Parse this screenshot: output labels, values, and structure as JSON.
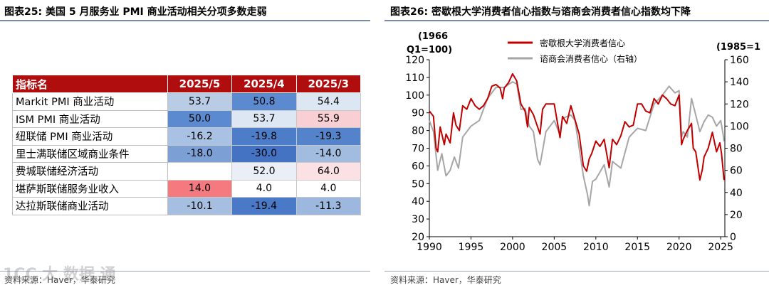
{
  "left_panel": {
    "title": "图表25:   美国 5 月服务业 PMI 商业活动相关分项多数走弱",
    "source": "资料来源：Haver，华泰研究",
    "table": {
      "headers": [
        "指标名",
        "2025/5",
        "2025/4",
        "2025/3"
      ],
      "rows": [
        {
          "name": "Markit PMI 商业活动",
          "values": [
            "53.7",
            "50.8",
            "54.4"
          ],
          "colors": [
            "#b9cce6",
            "#5b8ad0",
            "#dde6f3"
          ]
        },
        {
          "name": "ISM PMI 商业活动",
          "values": [
            "50.0",
            "53.7",
            "55.9"
          ],
          "colors": [
            "#5b8ad0",
            "#dde6f3",
            "#f8cfd2"
          ]
        },
        {
          "name": "纽联储 PMI 商业活动",
          "values": [
            "-16.2",
            "-19.8",
            "-19.3"
          ],
          "colors": [
            "#a9c1e2",
            "#4d7dc8",
            "#5583cb"
          ]
        },
        {
          "name": "里士满联储区域商业条件",
          "values": [
            "-18.0",
            "-30.0",
            "-14.0"
          ],
          "colors": [
            "#7c9fd6",
            "#4473c4",
            "#a2bce0"
          ]
        },
        {
          "name": "费城联储经济活动",
          "values": [
            "",
            "52.0",
            "64.0"
          ],
          "colors": [
            "#ffffff",
            "#e9eef7",
            "#fbe1e3"
          ]
        },
        {
          "name": "堪萨斯联储服务业收入",
          "values": [
            "14.0",
            "4.0",
            "4.0"
          ],
          "colors": [
            "#f47a7f",
            "#ffffff",
            "#ffffff"
          ]
        },
        {
          "name": "达拉斯联储商业活动",
          "values": [
            "-10.1",
            "-19.4",
            "-11.3"
          ],
          "colors": [
            "#a6bfe1",
            "#4a7ac7",
            "#9cb8df"
          ]
        }
      ]
    }
  },
  "right_panel": {
    "title": "图表26:   密歇根大学消费者信心指数与谘商会消费者信心指数均下降",
    "source": "资料来源：Haver，华泰研究",
    "chart_data": {
      "type": "line",
      "left_axis_note_line1": "(1966",
      "left_axis_note_line2": "Q1=100)",
      "right_axis_note": "(1985=1",
      "ylim_left": [
        20,
        120
      ],
      "ylim_right": [
        0,
        160
      ],
      "yticks_left": [
        "20",
        "30",
        "40",
        "50",
        "60",
        "70",
        "80",
        "90",
        "100",
        "110",
        "120"
      ],
      "yticks_right": [
        "0",
        "20",
        "40",
        "60",
        "80",
        "100",
        "120",
        "140",
        "160"
      ],
      "xlim": [
        1990,
        2025.5
      ],
      "xticks": [
        "1990",
        "1995",
        "2000",
        "2005",
        "2010",
        "2015",
        "2020",
        "2025"
      ],
      "series": [
        {
          "name": "密歇根大学消费者信心",
          "color": "#c00000",
          "axis": "left",
          "x": [
            1990.0,
            1990.5,
            1990.8,
            1991.0,
            1991.3,
            1991.8,
            1992.0,
            1992.5,
            1992.9,
            1993.2,
            1993.6,
            1994.0,
            1994.5,
            1995.0,
            1995.5,
            1996.0,
            1996.5,
            1997.0,
            1997.5,
            1998.0,
            1998.5,
            1998.8,
            1999.0,
            1999.5,
            2000.0,
            2000.5,
            2001.0,
            2001.5,
            2001.8,
            2002.0,
            2002.5,
            2003.0,
            2003.3,
            2003.6,
            2004.0,
            2004.5,
            2005.0,
            2005.7,
            2006.0,
            2006.5,
            2007.0,
            2007.5,
            2008.0,
            2008.5,
            2008.9,
            2009.2,
            2009.5,
            2010.0,
            2010.5,
            2011.0,
            2011.6,
            2012.0,
            2012.5,
            2013.0,
            2013.5,
            2014.0,
            2014.5,
            2015.0,
            2015.5,
            2016.0,
            2016.5,
            2017.0,
            2017.5,
            2018.0,
            2018.5,
            2019.0,
            2019.5,
            2020.0,
            2020.3,
            2020.5,
            2021.0,
            2021.5,
            2021.7,
            2022.0,
            2022.5,
            2022.8,
            2023.0,
            2023.5,
            2024.0,
            2024.5,
            2024.9,
            2025.1,
            2025.3,
            2025.4
          ],
          "values": [
            91,
            88,
            70,
            68,
            82,
            72,
            78,
            73,
            90,
            83,
            80,
            94,
            92,
            98,
            94,
            92,
            94,
            98,
            105,
            106,
            104,
            98,
            104,
            107,
            112,
            108,
            95,
            91,
            82,
            93,
            89,
            82,
            78,
            92,
            95,
            95,
            95,
            76,
            88,
            84,
            94,
            86,
            78,
            60,
            57,
            64,
            67,
            74,
            71,
            75,
            59,
            75,
            72,
            77,
            85,
            82,
            83,
            95,
            95,
            91,
            90,
            98,
            95,
            100,
            98,
            95,
            94,
            100,
            72,
            75,
            80,
            84,
            70,
            68,
            52,
            58,
            65,
            70,
            79,
            68,
            73,
            67,
            57,
            52
          ]
        },
        {
          "name": "谘商会消费者信心（右轴）",
          "color": "#a6a6a6",
          "axis": "right",
          "x": [
            1990.0,
            1990.5,
            1991.0,
            1991.5,
            1992.0,
            1992.5,
            1993.0,
            1993.5,
            1994.0,
            1995.0,
            1996.0,
            1997.0,
            1998.0,
            1999.0,
            2000.0,
            2000.5,
            2001.0,
            2001.5,
            2002.0,
            2002.5,
            2003.0,
            2003.3,
            2004.0,
            2005.0,
            2005.7,
            2006.0,
            2007.0,
            2007.5,
            2008.0,
            2008.5,
            2009.0,
            2009.2,
            2009.6,
            2010.0,
            2011.0,
            2011.6,
            2012.0,
            2013.0,
            2014.0,
            2015.0,
            2016.0,
            2017.0,
            2018.0,
            2018.8,
            2019.5,
            2020.0,
            2020.3,
            2020.5,
            2021.0,
            2021.5,
            2022.0,
            2022.5,
            2023.0,
            2023.5,
            2024.0,
            2024.5,
            2025.0,
            2025.3,
            2025.4
          ],
          "values": [
            105,
            95,
            60,
            75,
            55,
            60,
            72,
            62,
            90,
            100,
            105,
            125,
            135,
            135,
            140,
            138,
            115,
            116,
            100,
            95,
            70,
            65,
            95,
            105,
            92,
            107,
            110,
            105,
            80,
            55,
            38,
            28,
            50,
            52,
            65,
            45,
            68,
            62,
            90,
            98,
            96,
            120,
            128,
            136,
            130,
            132,
            90,
            95,
            90,
            125,
            110,
            95,
            104,
            110,
            108,
            100,
            105,
            92,
            86
          ]
        }
      ]
    }
  },
  "watermark": "1CC 大 数据 通"
}
